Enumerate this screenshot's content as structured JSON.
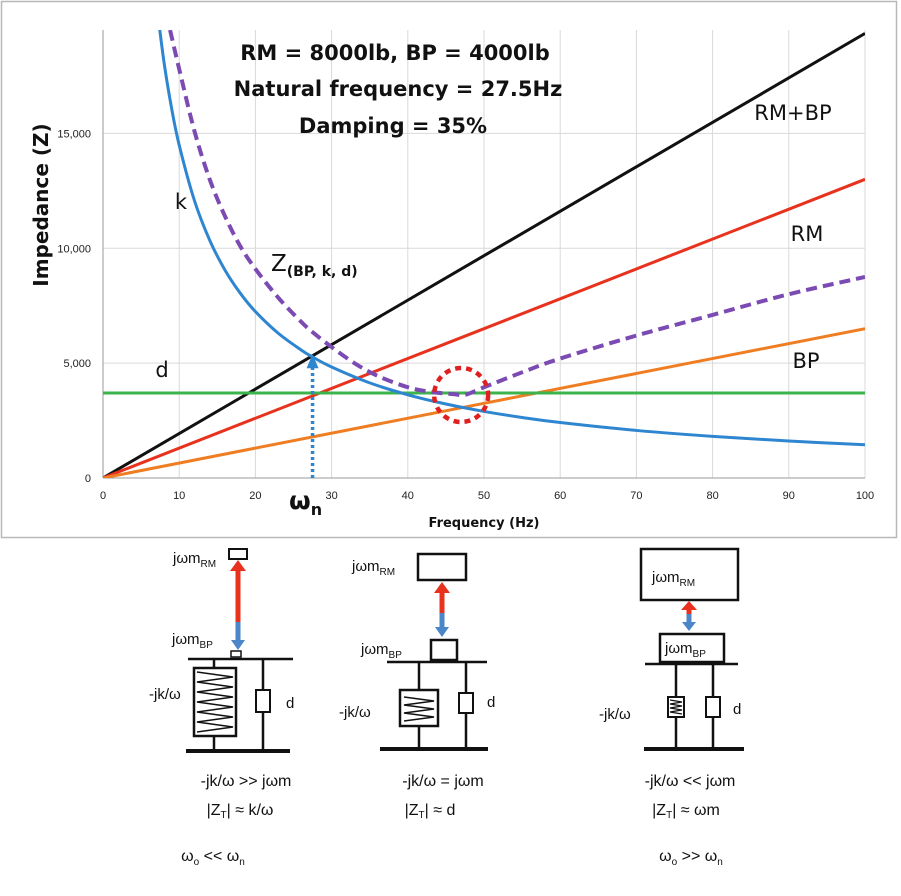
{
  "chart_data": {
    "type": "line",
    "title_lines": [
      "RM = 8000lb, BP = 4000lb",
      "Natural frequency = 27.5Hz",
      "Damping = 35%"
    ],
    "xlabel": "Frequency (Hz)",
    "ylabel": "Impedance (Z)",
    "xlim": [
      0,
      100
    ],
    "ylim": [
      0,
      19500
    ],
    "x_ticks": [
      0,
      10,
      20,
      30,
      40,
      50,
      60,
      70,
      80,
      90,
      100
    ],
    "x_tick_labels": [
      "0",
      "10",
      "20",
      "30",
      "40",
      "50",
      "60",
      "70",
      "80",
      "90",
      "100"
    ],
    "y_ticks": [
      0,
      5000,
      10000,
      15000
    ],
    "y_tick_labels": [
      "0",
      "5,000",
      "10,000",
      "15,000"
    ],
    "series": [
      {
        "name": "RM+BP",
        "label": "RM+BP",
        "color": "#111111",
        "style": "solid",
        "x": [
          0,
          100
        ],
        "y": [
          0,
          19350
        ]
      },
      {
        "name": "RM",
        "label": "RM",
        "color": "#e8321e",
        "style": "solid",
        "x": [
          0,
          100
        ],
        "y": [
          0,
          13000
        ]
      },
      {
        "name": "BP",
        "label": "BP",
        "color": "#ef7d22",
        "style": "solid",
        "x": [
          0,
          100
        ],
        "y": [
          0,
          6500
        ]
      },
      {
        "name": "d",
        "label": "d",
        "color": "#3cb44b",
        "style": "solid",
        "x": [
          0,
          100
        ],
        "y": [
          3700,
          3700
        ]
      },
      {
        "name": "k",
        "label": "k",
        "color": "#2f86d0",
        "style": "solid",
        "x": [
          7,
          8,
          9,
          10,
          12,
          14,
          16,
          18,
          20,
          23,
          26,
          27.5,
          30,
          35,
          40,
          45,
          50,
          55,
          60,
          70,
          80,
          90,
          100
        ],
        "y": [
          20700,
          18113,
          16100,
          14490,
          12075,
          10350,
          9056,
          8050,
          7245,
          6300,
          5573,
          5269,
          4830,
          4140,
          3623,
          3220,
          2898,
          2635,
          2415,
          2070,
          1811,
          1610,
          1449
        ]
      },
      {
        "name": "Z(BP, k, d)",
        "label_main": "Z",
        "label_sub": "(BP, k, d)",
        "color": "#7b4bb3",
        "style": "dashed",
        "x": [
          8.8,
          10,
          12,
          14,
          16,
          18,
          20,
          23,
          26,
          27.5,
          30,
          33,
          36,
          40,
          43,
          46,
          47.5,
          50,
          55,
          60,
          70,
          80,
          90,
          100
        ],
        "y": [
          19500,
          17800,
          15100,
          13000,
          11400,
          10100,
          9100,
          7850,
          6800,
          6350,
          5700,
          5000,
          4450,
          3950,
          3750,
          3650,
          3620,
          3950,
          4600,
          5200,
          6200,
          7100,
          8000,
          8750
        ]
      }
    ],
    "text_labels": {
      "d": "d",
      "k": "k",
      "natural_freq": "ω",
      "natural_freq_sub": "n"
    },
    "annotations": [
      {
        "type": "dotted-arrow",
        "color": "#2f86d0",
        "x": 27.5,
        "y_from": 0,
        "y_to": 5300,
        "meaning": "natural frequency ωn"
      },
      {
        "type": "dotted-circle",
        "color": "#e02020",
        "x": 47,
        "y": 3700,
        "meaning": "minimum impedance"
      }
    ]
  },
  "diagrams": [
    {
      "rm_label": "jωm",
      "rm_sub": "RM",
      "bp_label": "jωm",
      "bp_sub": "BP",
      "spring_label": "-jk/ω",
      "damper_label": "d",
      "eq1": "-jk/ω >> jωm",
      "eq2_pre": "|Z",
      "eq2_sub": "T",
      "eq2_post": "| ≈ k/ω",
      "cond_pre": "ω",
      "cond_sub1": "o",
      "cond_mid": " << ω",
      "cond_sub2": "n"
    },
    {
      "rm_label": "jωm",
      "rm_sub": "RM",
      "bp_label": "jωm",
      "bp_sub": "BP",
      "spring_label": "-jk/ω",
      "damper_label": "d",
      "eq1": "-jk/ω = jωm",
      "eq2_pre": "|Z",
      "eq2_sub": "T",
      "eq2_post": "| ≈ d"
    },
    {
      "rm_label": "jωm",
      "rm_sub": "RM",
      "bp_label": "jωm",
      "bp_sub": "BP",
      "spring_label": "-jk/ω",
      "damper_label": "d",
      "eq1": "-jk/ω << jωm",
      "eq2_pre": "|Z",
      "eq2_sub": "T",
      "eq2_post": "| ≈ ωm",
      "cond_pre": "ω",
      "cond_sub1": "o",
      "cond_mid": " >> ω",
      "cond_sub2": "n"
    }
  ],
  "colors": {
    "arrow_red": "#e8321e",
    "arrow_blue": "#4a86c8",
    "frame": "#b8b8b8"
  }
}
